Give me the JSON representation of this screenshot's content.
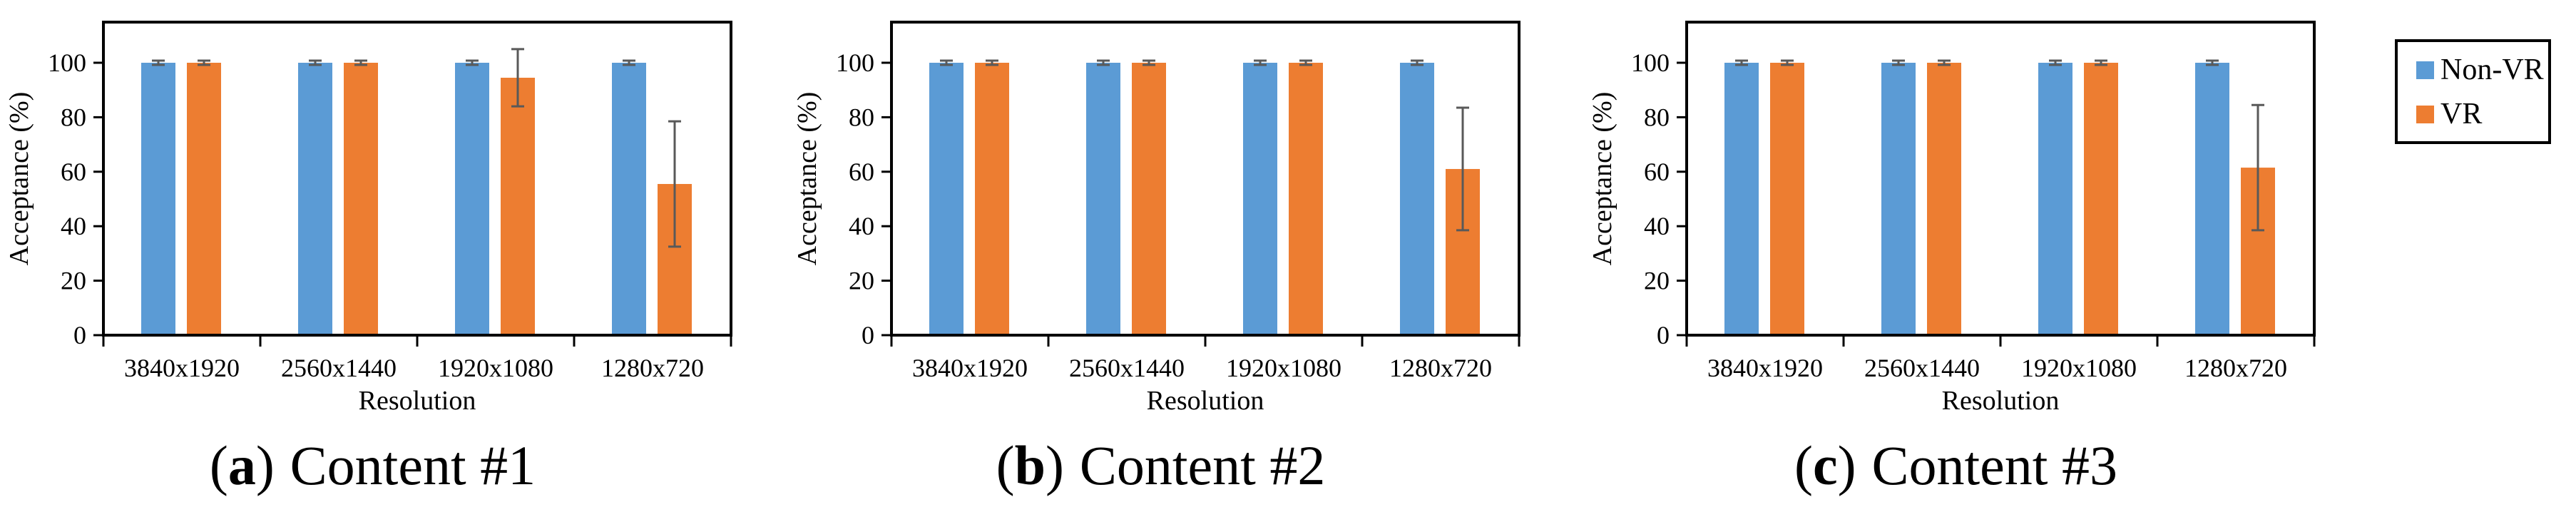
{
  "figure": {
    "background": "#FFFFFF"
  },
  "colors": {
    "non_vr": "#5B9BD5",
    "vr": "#ED7D31",
    "error_bar": "#595959",
    "axis": "#000000",
    "text": "#000000",
    "legend_border": "#000000"
  },
  "legend": {
    "items": [
      {
        "label": "Non-VR",
        "color_key": "non_vr"
      },
      {
        "label": "VR",
        "color_key": "vr"
      }
    ]
  },
  "chart_data": [
    {
      "type": "bar",
      "panel": "a",
      "caption": {
        "open": "(",
        "letter": "a",
        "close": ")",
        "text": "Content #1"
      },
      "categories": [
        "3840x1920",
        "2560x1440",
        "1920x1080",
        "1280x720"
      ],
      "series": [
        {
          "name": "Non-VR",
          "color_key": "non_vr",
          "values": [
            100,
            100,
            100,
            100
          ],
          "errors": [
            0.8,
            0.8,
            0.8,
            0.8
          ]
        },
        {
          "name": "VR",
          "color_key": "vr",
          "values": [
            100,
            100,
            94.5,
            55.5
          ],
          "errors": [
            0.8,
            0.8,
            10.5,
            23
          ]
        }
      ],
      "xlabel": "Resolution",
      "ylabel": "Acceptance (%)",
      "ylim": [
        0,
        115
      ],
      "yticks": [
        0,
        20,
        40,
        60,
        80,
        100
      ],
      "grid": false,
      "legend_position": "outside-right"
    },
    {
      "type": "bar",
      "panel": "b",
      "caption": {
        "open": "(",
        "letter": "b",
        "close": ")",
        "text": "Content #2"
      },
      "categories": [
        "3840x1920",
        "2560x1440",
        "1920x1080",
        "1280x720"
      ],
      "series": [
        {
          "name": "Non-VR",
          "color_key": "non_vr",
          "values": [
            100,
            100,
            100,
            100
          ],
          "errors": [
            0.8,
            0.8,
            0.8,
            0.8
          ]
        },
        {
          "name": "VR",
          "color_key": "vr",
          "values": [
            100,
            100,
            100,
            61
          ],
          "errors": [
            0.8,
            0.8,
            0.8,
            22.5
          ]
        }
      ],
      "xlabel": "Resolution",
      "ylabel": "Acceptance (%)",
      "ylim": [
        0,
        115
      ],
      "yticks": [
        0,
        20,
        40,
        60,
        80,
        100
      ],
      "grid": false,
      "legend_position": "outside-right"
    },
    {
      "type": "bar",
      "panel": "c",
      "caption": {
        "open": "(",
        "letter": "c",
        "close": ")",
        "text": "Content #3"
      },
      "categories": [
        "3840x1920",
        "2560x1440",
        "1920x1080",
        "1280x720"
      ],
      "series": [
        {
          "name": "Non-VR",
          "color_key": "non_vr",
          "values": [
            100,
            100,
            100,
            100
          ],
          "errors": [
            0.8,
            0.8,
            0.8,
            0.8
          ]
        },
        {
          "name": "VR",
          "color_key": "vr",
          "values": [
            100,
            100,
            100,
            61.5
          ],
          "errors": [
            0.8,
            0.8,
            0.8,
            23
          ]
        }
      ],
      "xlabel": "Resolution",
      "ylabel": "Acceptance (%)",
      "ylim": [
        0,
        115
      ],
      "yticks": [
        0,
        20,
        40,
        60,
        80,
        100
      ],
      "grid": false,
      "legend_position": "outside-right"
    }
  ]
}
